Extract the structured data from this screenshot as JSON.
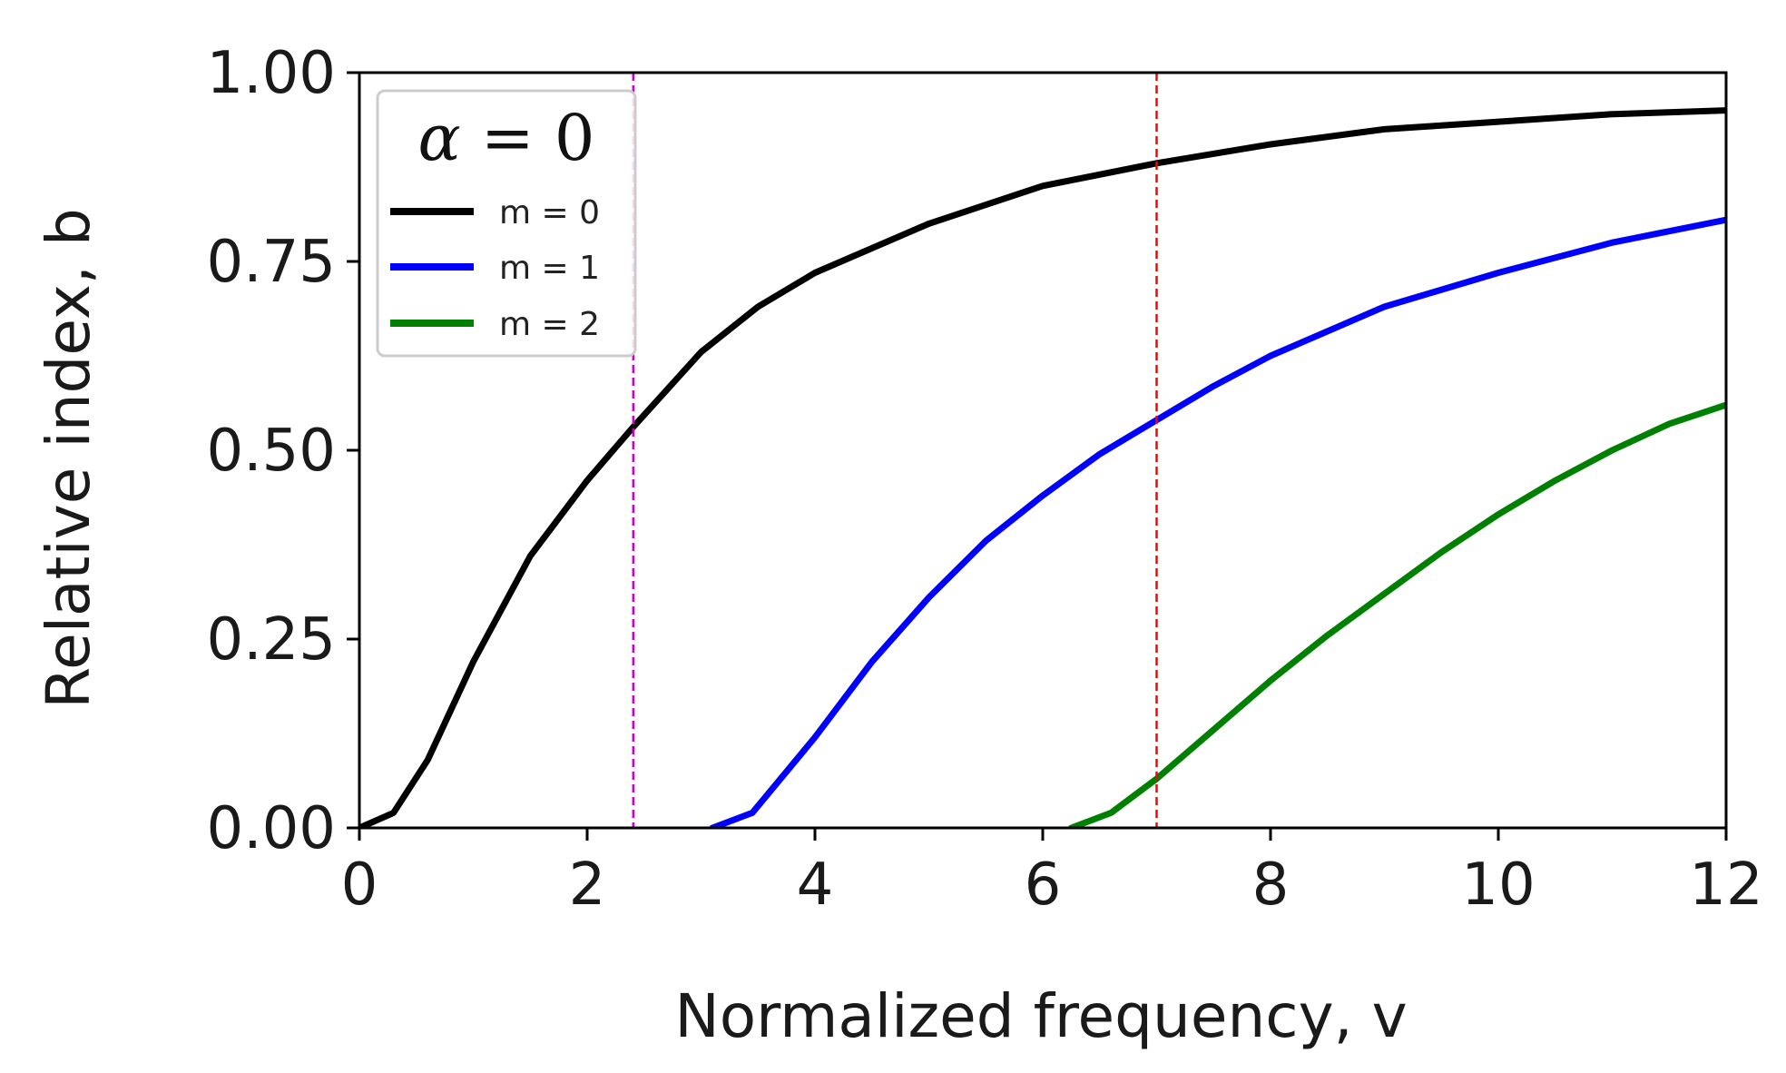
{
  "chart_data": {
    "type": "line",
    "title": "",
    "xlabel": "Normalized frequency, v",
    "ylabel": "Relative index, b",
    "xlim": [
      0,
      12
    ],
    "ylim": [
      0,
      1
    ],
    "xticks": [
      0,
      2,
      4,
      6,
      8,
      10,
      12
    ],
    "xtick_labels": [
      "0",
      "2",
      "4",
      "6",
      "8",
      "10",
      "12"
    ],
    "yticks": [
      0,
      0.25,
      0.5,
      0.75,
      1.0
    ],
    "ytick_labels": [
      "0.00",
      "0.25",
      "0.50",
      "0.75",
      "1.00"
    ],
    "grid": false,
    "legend": {
      "title_var": "α",
      "title_rest": " = 0",
      "placement": "top-left",
      "entries": [
        "m = 0",
        "m = 1",
        "m = 2"
      ]
    },
    "series": [
      {
        "name": "m = 0",
        "color": "#000000",
        "x": [
          0,
          0.3,
          0.6,
          1.0,
          1.5,
          2.0,
          2.4,
          3.0,
          3.5,
          4.0,
          5.0,
          6.0,
          7.0,
          8.0,
          9.0,
          10.0,
          11.0,
          12.0
        ],
        "y": [
          0,
          0.02,
          0.09,
          0.22,
          0.36,
          0.46,
          0.53,
          0.63,
          0.69,
          0.735,
          0.8,
          0.85,
          0.88,
          0.905,
          0.925,
          0.935,
          0.945,
          0.95
        ]
      },
      {
        "name": "m = 1",
        "color": "#0000ff",
        "x": [
          3.1,
          3.45,
          4.0,
          4.5,
          5.0,
          5.5,
          6.0,
          6.5,
          7.0,
          7.5,
          8.0,
          9.0,
          10.0,
          11.0,
          12.0
        ],
        "y": [
          0,
          0.02,
          0.12,
          0.22,
          0.305,
          0.38,
          0.44,
          0.495,
          0.54,
          0.585,
          0.625,
          0.69,
          0.735,
          0.775,
          0.805
        ]
      },
      {
        "name": "m = 2",
        "color": "#008000",
        "x": [
          6.25,
          6.6,
          7.0,
          7.5,
          8.0,
          8.5,
          9.0,
          9.5,
          10.0,
          10.5,
          11.0,
          11.5,
          12.0
        ],
        "y": [
          0,
          0.02,
          0.065,
          0.13,
          0.195,
          0.255,
          0.31,
          0.365,
          0.415,
          0.46,
          0.5,
          0.535,
          0.56
        ]
      }
    ],
    "vlines": [
      {
        "name": "magenta-vline",
        "x": 2.405,
        "color": "#cc00cc"
      },
      {
        "name": "red-vline",
        "x": 7.0,
        "color": "#ff0000"
      }
    ]
  }
}
